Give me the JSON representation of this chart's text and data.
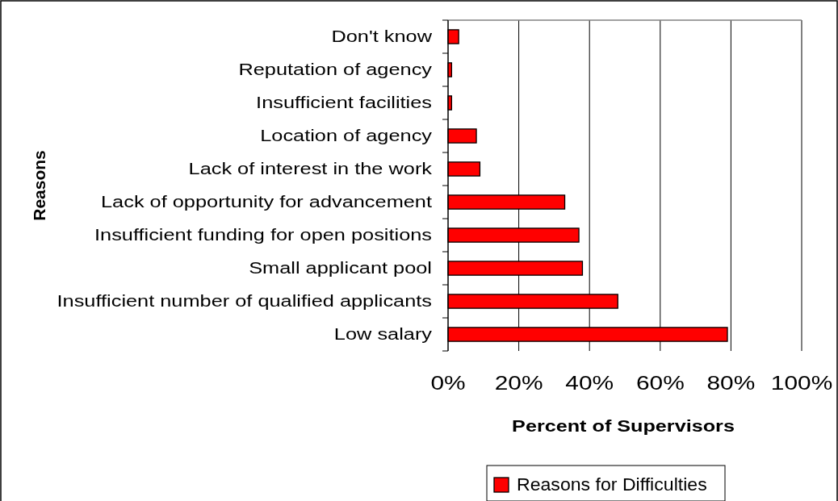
{
  "chart_data": {
    "type": "bar",
    "orientation": "horizontal",
    "xlabel": "Percent of Supervisors",
    "ylabel": "Reasons",
    "categories": [
      "Don't know",
      "Reputation of agency",
      "Insufficient facilities",
      "Location of agency",
      "Lack of interest in the work",
      "Lack of opportunity for advancement",
      "Insufficient funding for open positions",
      "Small applicant pool",
      "Insufficient number of qualified applicants",
      "Low salary"
    ],
    "series": [
      {
        "name": "Reasons for Difficulties",
        "color": "#ff0000",
        "values": [
          3,
          1,
          1,
          8,
          9,
          33,
          37,
          38,
          48,
          79
        ]
      }
    ],
    "xlim": [
      0,
      100
    ],
    "xticks": [
      {
        "value": 0,
        "label": "0%"
      },
      {
        "value": 20,
        "label": "20%"
      },
      {
        "value": 40,
        "label": "40%"
      },
      {
        "value": 60,
        "label": "60%"
      },
      {
        "value": 80,
        "label": "80%"
      },
      {
        "value": 100,
        "label": "100%"
      }
    ],
    "grid": "x",
    "legend": "bottom"
  }
}
